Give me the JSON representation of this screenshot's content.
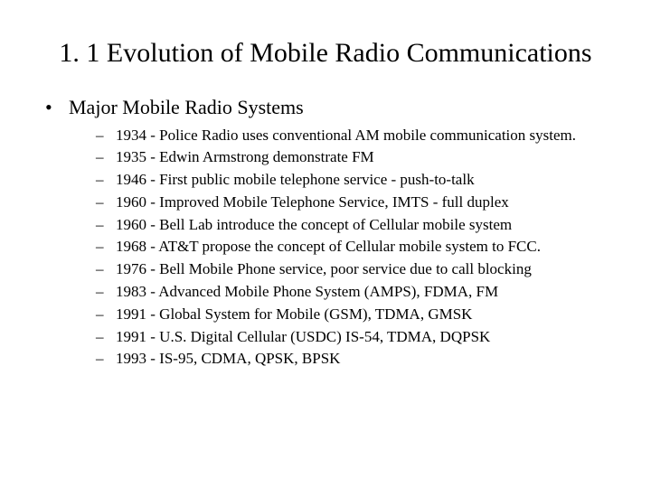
{
  "title": "1. 1 Evolution of Mobile Radio Communications",
  "bullet": {
    "label": "Major Mobile Radio Systems",
    "items": [
      "1934 - Police Radio uses conventional AM mobile communication system.",
      "1935 - Edwin Armstrong demonstrate FM",
      "1946 - First public mobile telephone service - push-to-talk",
      "1960 - Improved Mobile Telephone Service, IMTS - full duplex",
      "1960 - Bell Lab introduce the concept of Cellular mobile system",
      "1968 - AT&T propose the concept of Cellular mobile system to FCC.",
      "1976 - Bell Mobile Phone service, poor service due to call blocking",
      "1983 - Advanced Mobile Phone System (AMPS), FDMA, FM",
      "1991 - Global System for Mobile (GSM), TDMA, GMSK",
      "1991 - U.S.  Digital Cellular (USDC) IS-54, TDMA, DQPSK",
      "1993 - IS-95, CDMA, QPSK, BPSK"
    ]
  }
}
